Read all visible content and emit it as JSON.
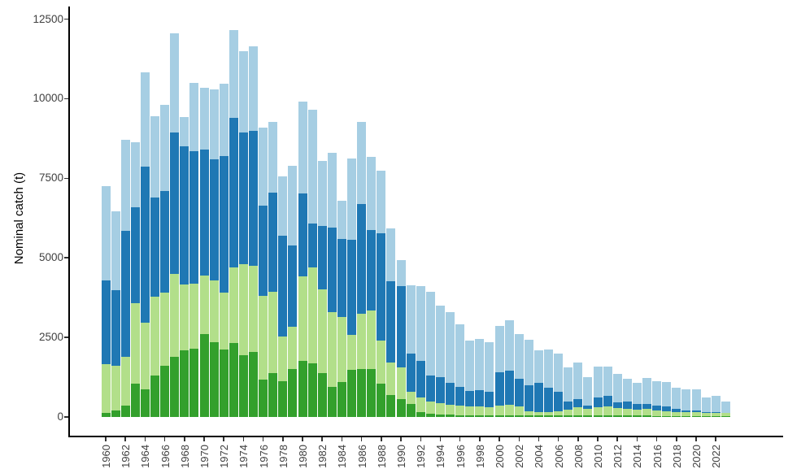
{
  "chart_data": {
    "type": "bar",
    "subtype": "stacked-bar",
    "title": "",
    "xlabel": "",
    "ylabel": "Nominal catch (t)",
    "ylim": [
      0,
      12500
    ],
    "yticks": [
      0,
      2500,
      5000,
      7500,
      10000,
      12500
    ],
    "ytick_labels": [
      "0",
      "2500",
      "5000",
      "7500",
      "10000",
      "12500"
    ],
    "xtick_label_step": 2,
    "grid": "off",
    "legend": "none",
    "background_color": "#ffffff",
    "axis_color": "#000000",
    "tick_label_color": "#404040",
    "years": [
      1960,
      1961,
      1962,
      1963,
      1964,
      1965,
      1966,
      1967,
      1968,
      1969,
      1970,
      1971,
      1972,
      1973,
      1974,
      1975,
      1976,
      1977,
      1978,
      1979,
      1980,
      1981,
      1982,
      1983,
      1984,
      1985,
      1986,
      1987,
      1988,
      1989,
      1990,
      1991,
      1992,
      1993,
      1994,
      1995,
      1996,
      1997,
      1998,
      1999,
      2000,
      2001,
      2002,
      2003,
      2004,
      2005,
      2006,
      2007,
      2008,
      2009,
      2010,
      2011,
      2012,
      2013,
      2014,
      2015,
      2016,
      2017,
      2018,
      2019,
      2020,
      2021,
      2022,
      2023
    ],
    "series": [
      {
        "name": "dark-green-bottom",
        "color": "#33a02c",
        "values": [
          120,
          200,
          350,
          1050,
          870,
          1300,
          1600,
          1900,
          2100,
          2150,
          2600,
          2350,
          2110,
          2320,
          1935,
          2040,
          1170,
          1385,
          1130,
          1510,
          1770,
          1680,
          1385,
          950,
          1100,
          1470,
          1510,
          1515,
          1050,
          700,
          550,
          400,
          150,
          95,
          80,
          70,
          60,
          55,
          55,
          50,
          55,
          55,
          50,
          45,
          40,
          40,
          40,
          50,
          60,
          40,
          50,
          60,
          40,
          40,
          45,
          40,
          35,
          30,
          30,
          25,
          25,
          20,
          20,
          20
        ]
      },
      {
        "name": "light-green",
        "color": "#b2df8a",
        "values": [
          1535,
          1400,
          1550,
          2530,
          2090,
          2470,
          2300,
          2600,
          2050,
          2050,
          1850,
          1950,
          1785,
          2380,
          2865,
          2710,
          2640,
          2555,
          1405,
          1320,
          2640,
          3025,
          2635,
          2350,
          2050,
          1105,
          1745,
          1825,
          1355,
          1000,
          1000,
          390,
          470,
          395,
          350,
          315,
          290,
          265,
          270,
          250,
          290,
          325,
          280,
          125,
          110,
          125,
          150,
          185,
          235,
          210,
          245,
          260,
          240,
          220,
          185,
          210,
          180,
          160,
          135,
          125,
          125,
          120,
          110,
          95
        ]
      },
      {
        "name": "dark-blue",
        "color": "#1f78b4",
        "values": [
          2645,
          2390,
          3960,
          3020,
          4910,
          3130,
          3200,
          4450,
          4350,
          4150,
          3950,
          3800,
          4305,
          4700,
          4150,
          4250,
          2840,
          3105,
          3165,
          2570,
          2610,
          1360,
          1980,
          2655,
          2450,
          3000,
          3425,
          2540,
          3365,
          2575,
          2550,
          1210,
          1145,
          810,
          825,
          700,
          600,
          500,
          525,
          500,
          1055,
          1070,
          870,
          830,
          935,
          765,
          600,
          255,
          255,
          115,
          325,
          340,
          170,
          230,
          190,
          155,
          150,
          130,
          85,
          65,
          55,
          25,
          25,
          25
        ]
      },
      {
        "name": "light-blue-top",
        "color": "#a6cee3",
        "values": [
          2950,
          2460,
          2840,
          2020,
          2970,
          2560,
          2710,
          3100,
          930,
          2140,
          1940,
          2180,
          2275,
          2750,
          2550,
          2650,
          2450,
          2215,
          1855,
          2500,
          2880,
          3595,
          2050,
          2345,
          1205,
          2550,
          2580,
          2290,
          1975,
          1640,
          820,
          2150,
          2335,
          2640,
          2245,
          2215,
          1950,
          1580,
          1600,
          1550,
          1450,
          1600,
          1400,
          1420,
          1020,
          1195,
          1205,
          1080,
          1150,
          890,
          975,
          930,
          910,
          700,
          665,
          825,
          765,
          785,
          665,
          660,
          670,
          455,
          505,
          350
        ]
      }
    ]
  }
}
